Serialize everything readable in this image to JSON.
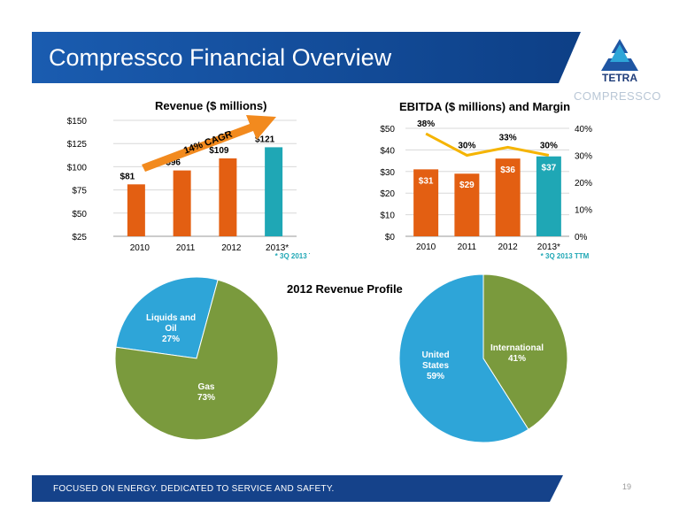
{
  "header": {
    "title": "Compressco Financial Overview",
    "brand": "COMPRESSCO",
    "logo_text": "TETRA"
  },
  "footer": {
    "tagline": "FOCUSED ON ENERGY. DEDICATED TO SERVICE AND SAFETY.",
    "page_number": "19"
  },
  "colors": {
    "blue": "#1f56a3",
    "orange": "#e35f12",
    "teal": "#1fa7b5",
    "green": "#7a9a3d",
    "light_blue": "#2ea5d8",
    "gold": "#f5b400",
    "arrow": "#f28a1e"
  },
  "chart_data": [
    {
      "type": "bar",
      "title": "Revenue ($ millions)",
      "categories": [
        "2010",
        "2011",
        "2012",
        "2013*"
      ],
      "values": [
        81,
        96,
        109,
        121
      ],
      "data_labels": [
        "$81",
        "$96",
        "$109",
        "$121"
      ],
      "ylim": [
        25,
        150
      ],
      "yticks": [
        "$25",
        "$50",
        "$75",
        "$100",
        "$125",
        "$150"
      ],
      "annotation": "14% CAGR",
      "footnote": "* 3Q 2013 TTM",
      "grid": true
    },
    {
      "type": "bar",
      "title": "EBITDA ($ millions) and Margin",
      "categories": [
        "2010",
        "2011",
        "2012",
        "2013*"
      ],
      "values": [
        31,
        29,
        36,
        37
      ],
      "data_labels": [
        "$31",
        "$29",
        "$36",
        "$37"
      ],
      "ylim": [
        0,
        50
      ],
      "yticks": [
        "$0",
        "$10",
        "$20",
        "$30",
        "$40",
        "$50"
      ],
      "series": [
        {
          "values": [
            31,
            29,
            36,
            37
          ]
        },
        {
          "values": [
            38,
            30,
            33,
            30
          ],
          "labels": [
            "38%",
            "30%",
            "33%",
            "30%"
          ]
        }
      ],
      "y2lim": [
        0,
        40
      ],
      "y2ticks": [
        "0%",
        "10%",
        "20%",
        "30%",
        "40%"
      ],
      "footnote": "* 3Q 2013 TTM",
      "grid": true
    },
    {
      "type": "pie",
      "title": "2012 Revenue Profile",
      "slices": [
        {
          "label": "Liquids and Oil",
          "pct_label": "27%",
          "value": 27
        },
        {
          "label": "Gas",
          "pct_label": "73%",
          "value": 73
        }
      ]
    },
    {
      "type": "pie",
      "slices": [
        {
          "label": "International",
          "pct_label": "41%",
          "value": 41
        },
        {
          "label": "United States",
          "pct_label": "59%",
          "value": 59
        }
      ]
    }
  ]
}
